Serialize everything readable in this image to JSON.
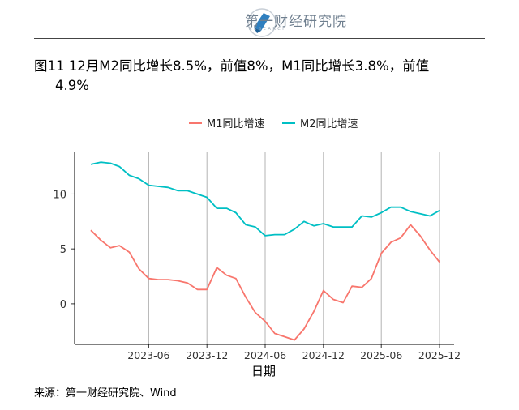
{
  "header": {
    "logo_text": "第一财经研究院",
    "logo_sub": "RESEARCH"
  },
  "figure_title_line1": "图11 12月M2同比增长8.5%，前值8%，M1同比增长3.8%，前值",
  "figure_title_line2": "4.9%",
  "source": "来源：第一财经研究院、Wind",
  "colors": {
    "m1": "#f8766d",
    "m2": "#00bfc4",
    "grid": "#b3b3b3",
    "axis": "#000000"
  },
  "chart_data": {
    "type": "line",
    "xlabel": "日期",
    "ylabel": "",
    "ylim": [
      -3.7,
      13.8
    ],
    "yticks": [
      0,
      5,
      10
    ],
    "xtick_labels": [
      "2023-06",
      "2023-12",
      "2024-06",
      "2024-12",
      "2025-06",
      "2025-12"
    ],
    "x": [
      "2022-12",
      "2023-01",
      "2023-02",
      "2023-03",
      "2023-04",
      "2023-05",
      "2023-06",
      "2023-07",
      "2023-08",
      "2023-09",
      "2023-10",
      "2023-11",
      "2023-12",
      "2024-01",
      "2024-02",
      "2024-03",
      "2024-04",
      "2024-05",
      "2024-06",
      "2024-07",
      "2024-08",
      "2024-09",
      "2024-10",
      "2024-11",
      "2024-12",
      "2025-01",
      "2025-02",
      "2025-03",
      "2025-04",
      "2025-05",
      "2025-06",
      "2025-07",
      "2025-08",
      "2025-09",
      "2025-10",
      "2025-11",
      "2025-12"
    ],
    "legend_position": "top",
    "series": [
      {
        "name": "M1同比增速",
        "color": "#f8766d",
        "values": [
          6.7,
          5.8,
          5.1,
          5.3,
          4.7,
          3.2,
          2.3,
          2.2,
          2.2,
          2.1,
          1.9,
          1.3,
          1.3,
          3.3,
          2.6,
          2.3,
          0.6,
          -0.8,
          -1.6,
          -2.7,
          -3.0,
          -3.3,
          -2.3,
          -0.7,
          1.2,
          0.4,
          0.1,
          1.6,
          1.5,
          2.3,
          4.6,
          5.6,
          6.0,
          7.2,
          6.2,
          4.9,
          3.8
        ]
      },
      {
        "name": "M2同比增速",
        "color": "#00bfc4",
        "values": [
          12.7,
          12.9,
          12.8,
          12.5,
          11.7,
          11.4,
          10.8,
          10.7,
          10.6,
          10.3,
          10.3,
          10.0,
          9.7,
          8.7,
          8.7,
          8.3,
          7.2,
          7.0,
          6.2,
          6.3,
          6.3,
          6.8,
          7.5,
          7.1,
          7.3,
          7.0,
          7.0,
          7.0,
          8.0,
          7.9,
          8.3,
          8.8,
          8.8,
          8.4,
          8.2,
          8.0,
          8.5
        ]
      }
    ]
  }
}
